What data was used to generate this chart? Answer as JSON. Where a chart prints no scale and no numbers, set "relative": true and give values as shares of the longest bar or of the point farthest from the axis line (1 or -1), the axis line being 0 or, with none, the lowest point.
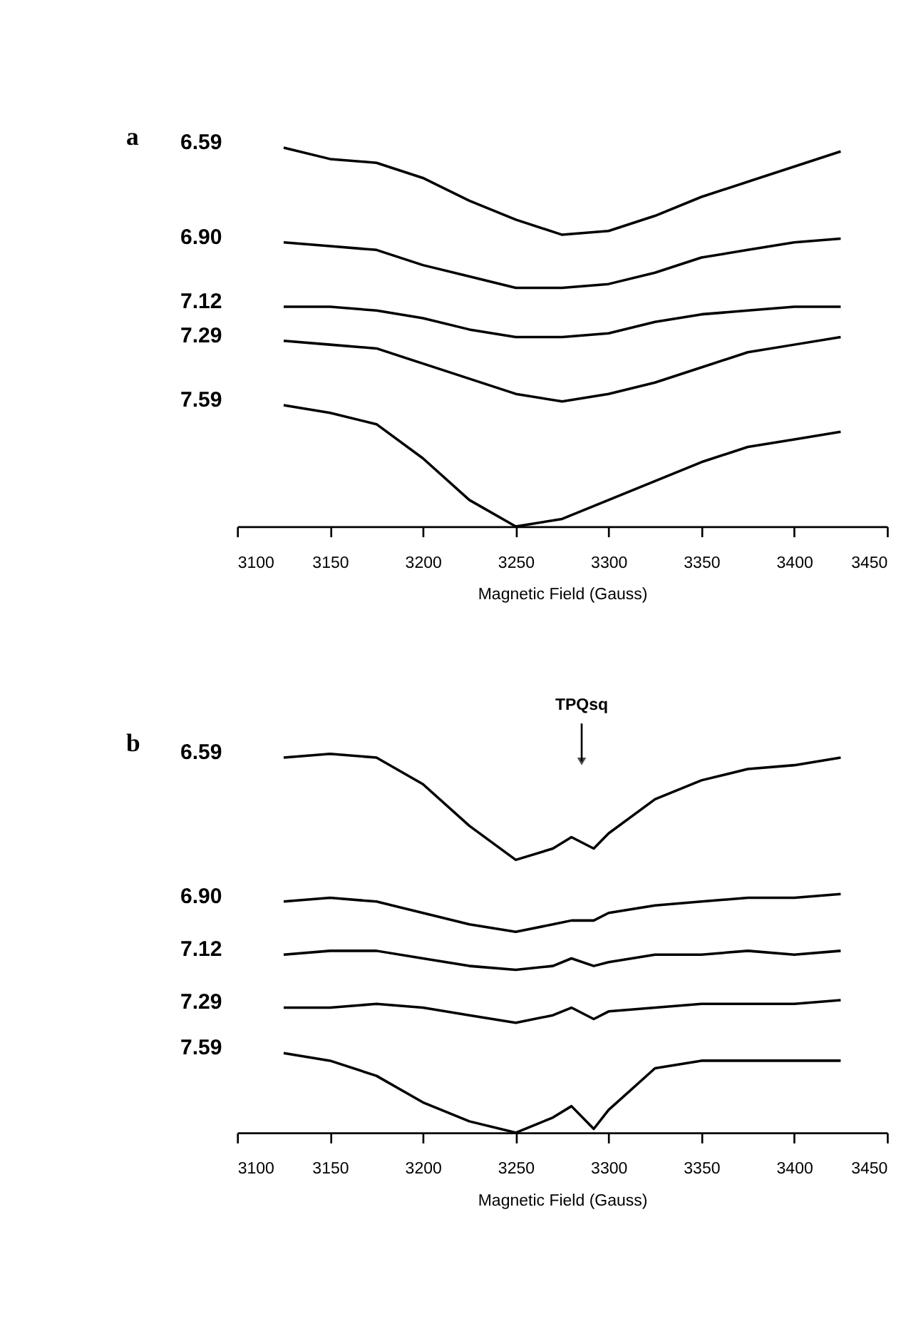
{
  "chart_data": [
    {
      "type": "line",
      "relative": true,
      "xlabel": "Magnetic Field (Gauss)",
      "xlim": [
        3100,
        3450
      ],
      "xticks": [
        3100,
        3150,
        3200,
        3250,
        3300,
        3350,
        3400,
        3450
      ],
      "annotations": [
        "a"
      ],
      "x": [
        3125,
        3150,
        3175,
        3200,
        3225,
        3250,
        3275,
        3300,
        3325,
        3350,
        3375,
        3400,
        3425
      ],
      "series": [
        {
          "name": "6.59",
          "color": "#000000",
          "values": [
            1,
            0.97,
            0.96,
            0.92,
            0.86,
            0.81,
            0.77,
            0.78,
            0.82,
            0.87,
            0.91,
            0.95,
            0.99
          ]
        },
        {
          "name": "6.90",
          "color": "#000000",
          "values": [
            0.75,
            0.74,
            0.73,
            0.69,
            0.66,
            0.63,
            0.63,
            0.64,
            0.67,
            0.71,
            0.73,
            0.75,
            0.76
          ]
        },
        {
          "name": "7.12",
          "color": "#000000",
          "values": [
            0.58,
            0.58,
            0.57,
            0.55,
            0.52,
            0.5,
            0.5,
            0.51,
            0.54,
            0.56,
            0.57,
            0.58,
            0.58
          ]
        },
        {
          "name": "7.29",
          "color": "#000000",
          "values": [
            0.49,
            0.48,
            0.47,
            0.43,
            0.39,
            0.35,
            0.33,
            0.35,
            0.38,
            0.42,
            0.46,
            0.48,
            0.5
          ]
        },
        {
          "name": "7.59",
          "color": "#000000",
          "values": [
            0.32,
            0.3,
            0.27,
            0.18,
            0.07,
            0,
            0.02,
            0.07,
            0.12,
            0.17,
            0.21,
            0.23,
            0.25
          ]
        }
      ]
    },
    {
      "type": "line",
      "relative": true,
      "xlabel": "Magnetic Field (Gauss)",
      "xlim": [
        3100,
        3450
      ],
      "xticks": [
        3100,
        3150,
        3200,
        3250,
        3300,
        3350,
        3400,
        3450
      ],
      "annotations": [
        "b",
        "TPQsq"
      ],
      "x": [
        3125,
        3150,
        3175,
        3200,
        3225,
        3250,
        3270,
        3280,
        3292,
        3300,
        3325,
        3350,
        3375,
        3400,
        3425
      ],
      "series": [
        {
          "name": "6.59",
          "color": "#000000",
          "values": [
            0.99,
            1,
            0.99,
            0.92,
            0.81,
            0.72,
            0.75,
            0.78,
            0.75,
            0.79,
            0.88,
            0.93,
            0.96,
            0.97,
            0.99
          ]
        },
        {
          "name": "6.90",
          "color": "#000000",
          "values": [
            0.61,
            0.62,
            0.61,
            0.58,
            0.55,
            0.53,
            0.55,
            0.56,
            0.56,
            0.58,
            0.6,
            0.61,
            0.62,
            0.62,
            0.63
          ]
        },
        {
          "name": "7.12",
          "color": "#000000",
          "values": [
            0.47,
            0.48,
            0.48,
            0.46,
            0.44,
            0.43,
            0.44,
            0.46,
            0.44,
            0.45,
            0.47,
            0.47,
            0.48,
            0.47,
            0.48
          ]
        },
        {
          "name": "7.29",
          "color": "#000000",
          "values": [
            0.33,
            0.33,
            0.34,
            0.33,
            0.31,
            0.29,
            0.31,
            0.33,
            0.3,
            0.32,
            0.33,
            0.34,
            0.34,
            0.34,
            0.35
          ]
        },
        {
          "name": "7.59",
          "color": "#000000",
          "values": [
            0.21,
            0.19,
            0.15,
            0.08,
            0.03,
            0,
            0.04,
            0.07,
            0.01,
            0.06,
            0.17,
            0.19,
            0.19,
            0.19,
            0.19
          ]
        }
      ]
    }
  ]
}
